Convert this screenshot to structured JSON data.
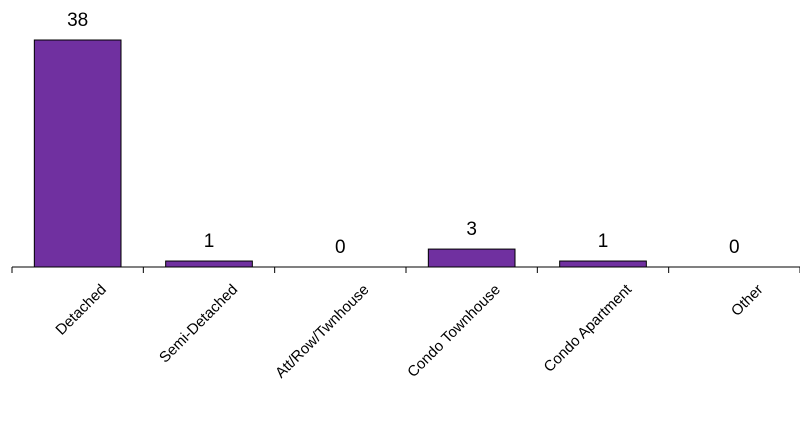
{
  "chart_data": {
    "type": "bar",
    "categories": [
      "Detached",
      "Semi-Detached",
      "Att/Row/Twnhouse",
      "Condo Townhouse",
      "Condo Apartment",
      "Other"
    ],
    "values": [
      38,
      1,
      0,
      3,
      1,
      0
    ],
    "data_labels": [
      "38",
      "1",
      "0",
      "3",
      "1",
      "0"
    ],
    "title": "",
    "xlabel": "",
    "ylabel": "",
    "ylim": [
      0,
      38
    ],
    "grid": false,
    "legend": "none",
    "bar_color": "#7030a0",
    "bar_edge_color": "#000000"
  }
}
